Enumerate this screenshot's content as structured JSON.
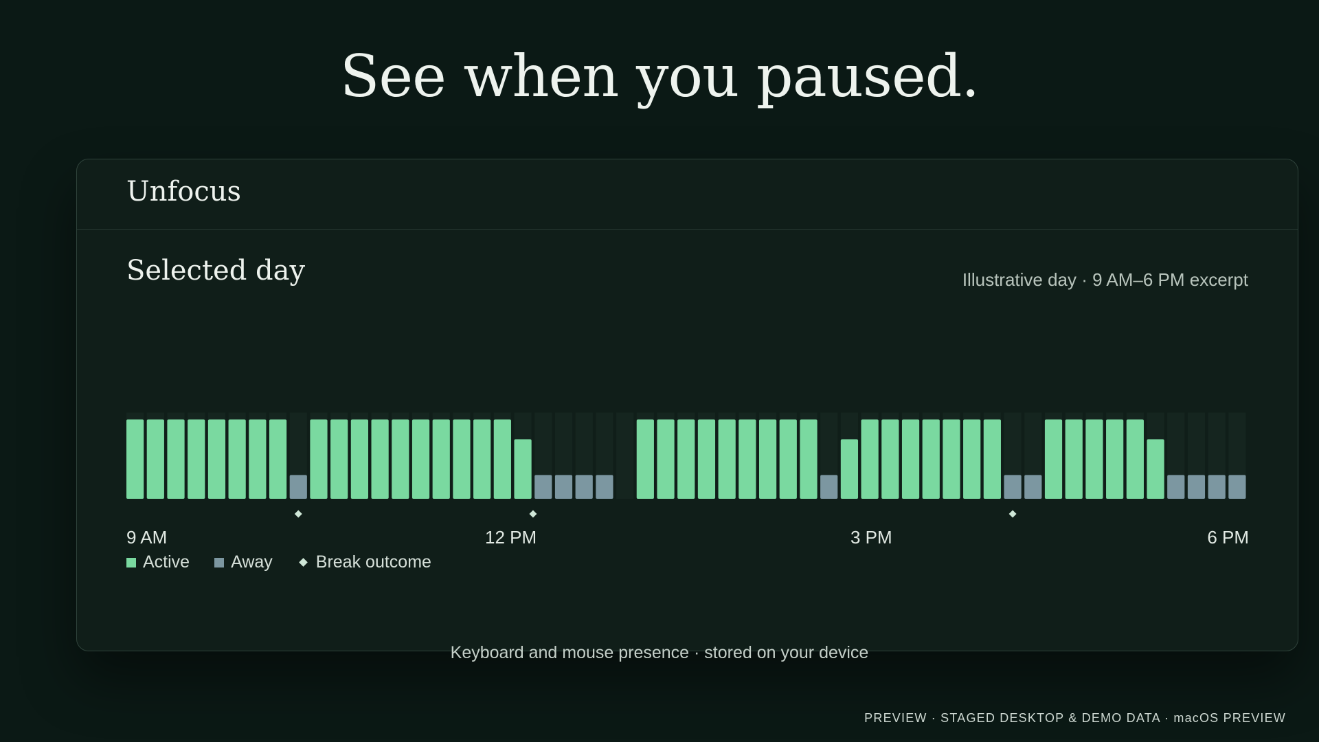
{
  "headline": "See when you paused.",
  "app": {
    "title": "Unfocus"
  },
  "section": {
    "title": "Selected day",
    "excerpt": "Illustrative day · 9 AM–6 PM excerpt"
  },
  "colors": {
    "active": "#7ad9a0",
    "away": "#7c97a1",
    "track": "#15251f",
    "marker": "#cfe7d7",
    "background": "#0b1915",
    "panel": "#101e19"
  },
  "legend": {
    "active": "Active",
    "away": "Away",
    "break": "Break outcome"
  },
  "chart_data": {
    "type": "bar",
    "x_ticks": [
      "9 AM",
      "12 PM",
      "3 PM",
      "6 PM"
    ],
    "x_range": [
      "9 AM",
      "6 PM"
    ],
    "series": [
      {
        "name": "Active",
        "values": [
          1,
          1,
          1,
          1,
          1,
          1,
          1,
          1,
          0,
          1,
          1,
          1,
          1,
          1,
          1,
          1,
          1,
          1,
          1,
          0.75,
          0,
          0,
          0,
          0,
          0,
          1,
          1,
          1,
          1,
          1,
          1,
          1,
          1,
          1,
          0,
          0.75,
          1,
          1,
          1,
          1,
          1,
          1,
          1,
          0,
          0,
          1,
          1,
          1,
          1,
          1,
          0.75,
          0,
          0,
          0,
          0
        ]
      },
      {
        "name": "Away",
        "values": [
          0,
          0,
          0,
          0,
          0,
          0,
          0,
          0,
          0.3,
          0,
          0,
          0,
          0,
          0,
          0,
          0,
          0,
          0,
          0,
          0,
          0.3,
          0.3,
          0.3,
          0.3,
          0,
          0,
          0,
          0,
          0,
          0,
          0,
          0,
          0,
          0,
          0.3,
          0,
          0,
          0,
          0,
          0,
          0,
          0,
          0,
          0.3,
          0.3,
          0,
          0,
          0,
          0,
          0,
          0,
          0.3,
          0.3,
          0.3,
          0.3
        ]
      }
    ],
    "break_outcomes": [
      8,
      19.5,
      43
    ],
    "ylim": [
      0,
      1.1
    ]
  },
  "footer": "Keyboard and mouse presence · stored on your device",
  "preview_note": "PREVIEW · STAGED DESKTOP & DEMO DATA · macOS PREVIEW"
}
